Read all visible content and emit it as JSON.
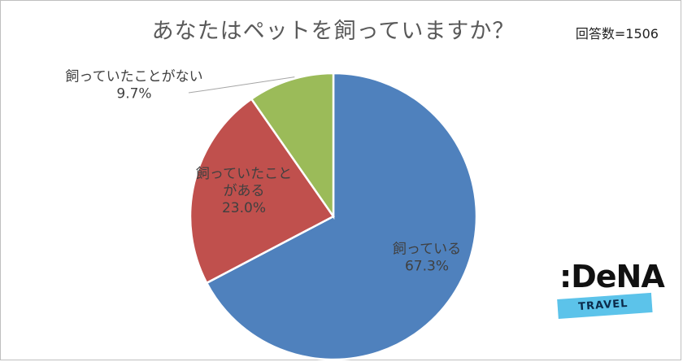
{
  "chart_data": {
    "type": "pie",
    "title": "あなたはペットを飼っていますか？",
    "note": "回答数=1506",
    "slices": [
      {
        "label_lines": [
          "飼っている"
        ],
        "pct_label": "67.3%",
        "value": 67.3,
        "color": "#4f81bd"
      },
      {
        "label_lines": [
          "飼っていたこと",
          "がある"
        ],
        "pct_label": "23.0%",
        "value": 23.0,
        "color": "#c0504d"
      },
      {
        "label_lines": [
          "飼っていたことがない"
        ],
        "pct_label": "9.7%",
        "value": 9.7,
        "color": "#9bbb59"
      }
    ]
  },
  "logo": {
    "main": ":DeNA",
    "sub": "TRAVEL"
  }
}
